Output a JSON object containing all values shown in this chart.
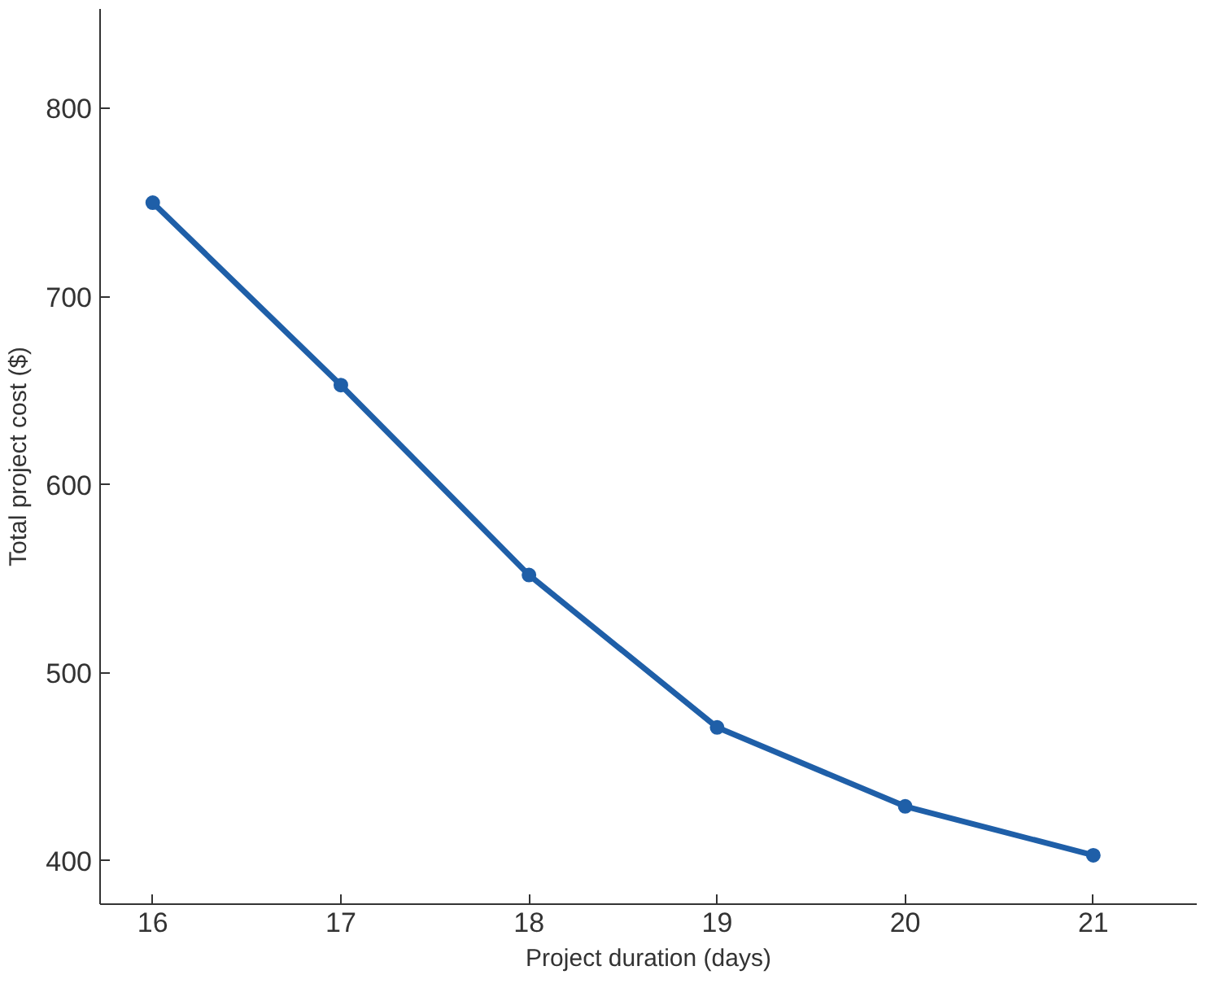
{
  "chart_data": {
    "type": "line",
    "xlabel": "Project duration (days)",
    "ylabel": "Total project cost ($)",
    "x": [
      16,
      17,
      18,
      19,
      20,
      21
    ],
    "series": [
      {
        "color": "#1f5fa8",
        "values": [
          750,
          653,
          552,
          471,
          429,
          403
        ]
      }
    ],
    "xlim": [
      15.72,
      21.55
    ],
    "ylim": [
      377,
      853
    ],
    "xticks": [
      16,
      17,
      18,
      19,
      20,
      21
    ],
    "yticks": [
      400,
      500,
      600,
      700,
      800
    ],
    "grid": false,
    "marker": "circle",
    "line_style": "solid"
  }
}
